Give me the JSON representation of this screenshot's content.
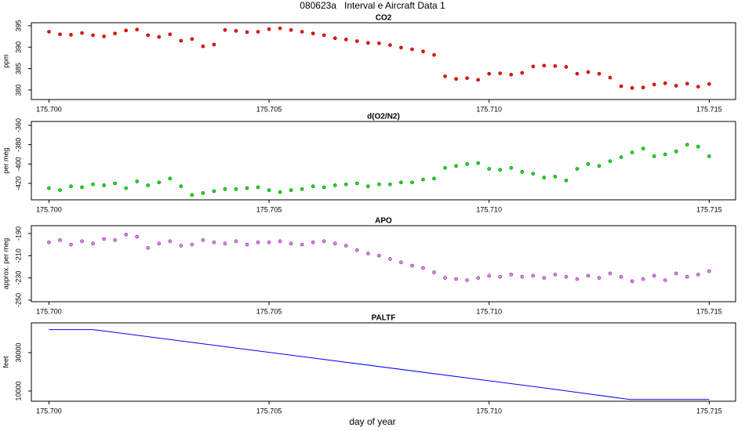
{
  "title": "080623a   Interval e Aircraft Data 1",
  "x_label": "day of year",
  "chart_data": [
    {
      "type": "scatter",
      "title": "CO2",
      "y_label": "ppm",
      "color": "#ff0000",
      "x": [
        175.7,
        175.70025,
        175.7005,
        175.70075,
        175.701,
        175.70125,
        175.7015,
        175.70175,
        175.702,
        175.70225,
        175.7025,
        175.70275,
        175.703,
        175.70325,
        175.7035,
        175.70375,
        175.704,
        175.70425,
        175.7045,
        175.70475,
        175.705,
        175.70525,
        175.7055,
        175.70575,
        175.706,
        175.70625,
        175.7065,
        175.70675,
        175.707,
        175.70725,
        175.7075,
        175.70775,
        175.708,
        175.70825,
        175.7085,
        175.70875,
        175.709,
        175.70925,
        175.7095,
        175.70975,
        175.71,
        175.71025,
        175.7105,
        175.71075,
        175.711,
        175.71125,
        175.7115,
        175.71175,
        175.712,
        175.71225,
        175.7125,
        175.71275,
        175.713,
        175.71325,
        175.7135,
        175.71375,
        175.714,
        175.71425,
        175.7145,
        175.71475,
        175.715
      ],
      "values": [
        393.6,
        393.0,
        392.9,
        393.3,
        392.8,
        392.5,
        393.2,
        393.9,
        394.1,
        392.8,
        392.4,
        393.0,
        391.5,
        391.9,
        390.2,
        390.6,
        394.0,
        393.8,
        393.5,
        393.6,
        394.2,
        394.4,
        394.0,
        393.6,
        393.2,
        392.8,
        392.1,
        391.8,
        391.4,
        391.0,
        390.9,
        390.5,
        389.9,
        389.5,
        389.0,
        388.2,
        383.2,
        382.6,
        382.8,
        382.4,
        383.8,
        383.9,
        383.6,
        384.0,
        385.5,
        385.7,
        385.6,
        385.4,
        383.8,
        384.2,
        383.8,
        382.9,
        380.9,
        380.5,
        380.6,
        381.3,
        381.6,
        381.0,
        381.5,
        380.8,
        381.4
      ],
      "xlim": [
        175.6996,
        175.7156
      ],
      "ylim": [
        377.8,
        395.7
      ],
      "xticks": [
        {
          "value": 175.7,
          "label": "175.700"
        },
        {
          "value": 175.705,
          "label": "175.705"
        },
        {
          "value": 175.71,
          "label": "175.710"
        },
        {
          "value": 175.715,
          "label": "175.715"
        }
      ],
      "yticks": [
        380,
        385,
        390,
        395
      ]
    },
    {
      "type": "scatter",
      "title": "d(O2/N2)",
      "y_label": "per meg",
      "color": "#00ee00",
      "x": [
        175.7,
        175.70025,
        175.7005,
        175.70075,
        175.701,
        175.70125,
        175.7015,
        175.70175,
        175.702,
        175.70225,
        175.7025,
        175.70275,
        175.703,
        175.70325,
        175.7035,
        175.70375,
        175.704,
        175.70425,
        175.7045,
        175.70475,
        175.705,
        175.70525,
        175.7055,
        175.70575,
        175.706,
        175.70625,
        175.7065,
        175.70675,
        175.707,
        175.70725,
        175.7075,
        175.70775,
        175.708,
        175.70825,
        175.7085,
        175.70875,
        175.709,
        175.70925,
        175.7095,
        175.70975,
        175.71,
        175.71025,
        175.7105,
        175.71075,
        175.711,
        175.71125,
        175.7115,
        175.71175,
        175.712,
        175.71225,
        175.7125,
        175.71275,
        175.713,
        175.71325,
        175.7135,
        175.71375,
        175.714,
        175.71425,
        175.7145,
        175.71475,
        175.715
      ],
      "values": [
        -425,
        -427,
        -423,
        -424,
        -421,
        -422,
        -420,
        -425,
        -418,
        -422,
        -419,
        -415,
        -423,
        -432,
        -430,
        -428,
        -426,
        -426,
        -425,
        -424,
        -427,
        -429,
        -427,
        -426,
        -423,
        -424,
        -422,
        -421,
        -420,
        -423,
        -421,
        -421,
        -419,
        -419,
        -416,
        -415,
        -404,
        -402,
        -400,
        -399,
        -405,
        -406,
        -404,
        -408,
        -410,
        -414,
        -413,
        -417,
        -405,
        -400,
        -402,
        -397,
        -393,
        -388,
        -384,
        -392,
        -390,
        -387,
        -380,
        -382,
        -392
      ],
      "xlim": [
        175.6996,
        175.7156
      ],
      "ylim": [
        -437,
        -356
      ],
      "xticks": [
        {
          "value": 175.7,
          "label": "175.700"
        },
        {
          "value": 175.705,
          "label": "175.705"
        },
        {
          "value": 175.71,
          "label": "175.710"
        },
        {
          "value": 175.715,
          "label": "175.715"
        }
      ],
      "yticks": [
        -420,
        -400,
        -380,
        -360
      ]
    },
    {
      "type": "scatter",
      "title": "APO",
      "y_label": "approx. per meg",
      "color": "#ee82ee",
      "x": [
        175.7,
        175.70025,
        175.7005,
        175.70075,
        175.701,
        175.70125,
        175.7015,
        175.70175,
        175.702,
        175.70225,
        175.7025,
        175.70275,
        175.703,
        175.70325,
        175.7035,
        175.70375,
        175.704,
        175.70425,
        175.7045,
        175.70475,
        175.705,
        175.70525,
        175.7055,
        175.70575,
        175.706,
        175.70625,
        175.7065,
        175.70675,
        175.707,
        175.70725,
        175.7075,
        175.70775,
        175.708,
        175.70825,
        175.7085,
        175.70875,
        175.709,
        175.70925,
        175.7095,
        175.70975,
        175.71,
        175.71025,
        175.7105,
        175.71075,
        175.711,
        175.71125,
        175.7115,
        175.71175,
        175.712,
        175.71225,
        175.7125,
        175.71275,
        175.713,
        175.71325,
        175.7135,
        175.71375,
        175.714,
        175.71425,
        175.7145,
        175.71475,
        175.715
      ],
      "values": [
        -198,
        -196,
        -200,
        -197,
        -199,
        -195,
        -196,
        -191,
        -193,
        -203,
        -199,
        -197,
        -201,
        -200,
        -196,
        -198,
        -199,
        -197,
        -200,
        -198,
        -198,
        -197,
        -199,
        -200,
        -198,
        -197,
        -199,
        -201,
        -205,
        -208,
        -210,
        -213,
        -216,
        -219,
        -221,
        -225,
        -230,
        -231,
        -232,
        -230,
        -228,
        -229,
        -227,
        -229,
        -228,
        -230,
        -227,
        -229,
        -231,
        -228,
        -230,
        -226,
        -229,
        -233,
        -231,
        -228,
        -232,
        -226,
        -229,
        -227,
        -224
      ],
      "xlim": [
        175.6996,
        175.7156
      ],
      "ylim": [
        -251.4,
        -183
      ],
      "xticks": [
        {
          "value": 175.7,
          "label": "175.700"
        },
        {
          "value": 175.705,
          "label": "175.705"
        },
        {
          "value": 175.71,
          "label": "175.710"
        },
        {
          "value": 175.715,
          "label": "175.715"
        }
      ],
      "yticks": [
        -250,
        -230,
        -210,
        -190
      ]
    },
    {
      "type": "line",
      "title": "PALTF",
      "y_label": "feet",
      "color": "#0000ff",
      "x": [
        175.7,
        175.701,
        175.7113,
        175.7132,
        175.715
      ],
      "values": [
        42000,
        42000,
        11500,
        5600,
        5600
      ],
      "xlim": [
        175.6996,
        175.7156
      ],
      "ylim": [
        4700,
        45500
      ],
      "xticks": [
        {
          "value": 175.7,
          "label": "175.700"
        },
        {
          "value": 175.705,
          "label": "175.705"
        },
        {
          "value": 175.71,
          "label": "175.710"
        },
        {
          "value": 175.715,
          "label": "175.715"
        }
      ],
      "yticks": [
        10000,
        30000
      ]
    }
  ]
}
